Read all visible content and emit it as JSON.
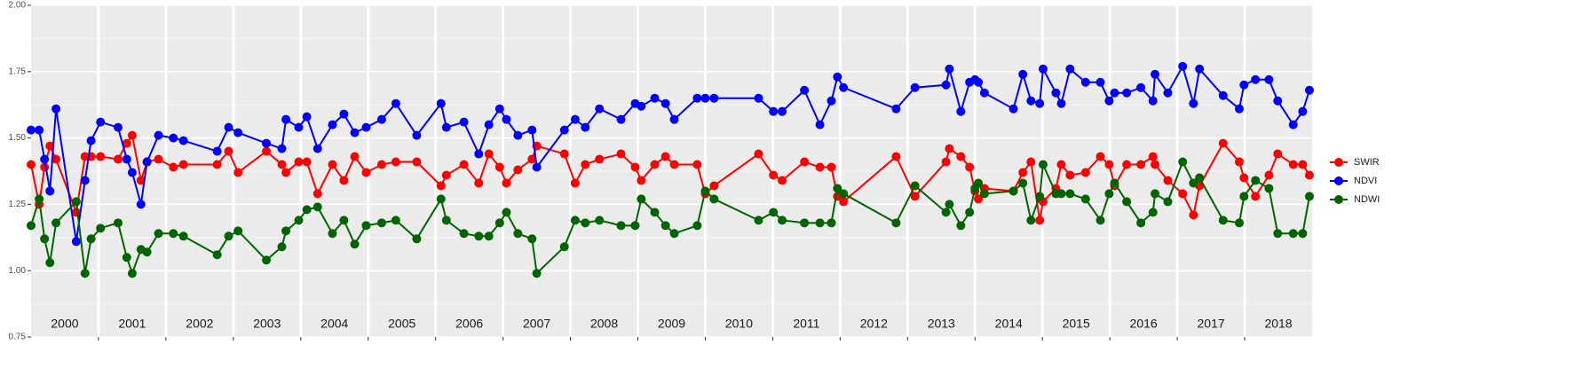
{
  "chart_data": {
    "type": "line",
    "xlim": [
      2000,
      2019
    ],
    "ylim": [
      0.75,
      2.0
    ],
    "yticks": [
      0.75,
      {
        "value": 1.0,
        "label": "1.00"
      },
      1.25,
      {
        "value": 1.5,
        "label": "1.50"
      },
      1.75,
      {
        "value": 2.0,
        "label": "2.00"
      }
    ],
    "xticks": [
      {
        "value": 2000.5,
        "label": "2000"
      },
      {
        "value": 2001.5,
        "label": "2001"
      },
      {
        "value": 2002.5,
        "label": "2002"
      },
      {
        "value": 2003.5,
        "label": "2003"
      },
      {
        "value": 2004.5,
        "label": "2004"
      },
      {
        "value": 2005.5,
        "label": "2005"
      },
      {
        "value": 2006.5,
        "label": "2006"
      },
      {
        "value": 2007.5,
        "label": "2007"
      },
      {
        "value": 2008.5,
        "label": "2008"
      },
      {
        "value": 2009.5,
        "label": "2009"
      },
      {
        "value": 2010.5,
        "label": "2010"
      },
      {
        "value": 2011.5,
        "label": "2011"
      },
      {
        "value": 2012.5,
        "label": "2012"
      },
      {
        "value": 2013.5,
        "label": "2013"
      },
      {
        "value": 2014.5,
        "label": "2014"
      },
      {
        "value": 2015.5,
        "label": "2015"
      },
      {
        "value": 2016.5,
        "label": "2016"
      },
      {
        "value": 2017.5,
        "label": "2017"
      },
      {
        "value": 2018.5,
        "label": "2018"
      }
    ],
    "grid": true,
    "legend": "right",
    "x": [
      2000.0,
      2000.12,
      2000.2,
      2000.28,
      2000.37,
      2000.67,
      2000.8,
      2000.89,
      2001.03,
      2001.29,
      2001.42,
      2001.5,
      2001.63,
      2001.72,
      2001.89,
      2002.11,
      2002.26,
      2002.76,
      2002.93,
      2003.07,
      2003.49,
      2003.72,
      2003.78,
      2003.97,
      2004.09,
      2004.25,
      2004.47,
      2004.64,
      2004.8,
      2004.97,
      2005.2,
      2005.41,
      2005.72,
      2006.08,
      2006.16,
      2006.42,
      2006.64,
      2006.79,
      2006.95,
      2007.05,
      2007.22,
      2007.43,
      2007.5,
      2007.91,
      2008.07,
      2008.22,
      2008.43,
      2008.75,
      2008.96,
      2009.05,
      2009.25,
      2009.41,
      2009.54,
      2009.88,
      2010.0,
      2010.13,
      2010.79,
      2011.01,
      2011.14,
      2011.47,
      2011.7,
      2011.87,
      2011.96,
      2012.05,
      2012.83,
      2013.11,
      2013.57,
      2013.62,
      2013.79,
      2013.92,
      2014.0,
      2014.05,
      2014.14,
      2014.57,
      2014.71,
      2014.83,
      2014.96,
      2015.01,
      2015.2,
      2015.28,
      2015.41,
      2015.64,
      2015.86,
      2015.99,
      2016.07,
      2016.25,
      2016.46,
      2016.64,
      2016.67,
      2016.86,
      2017.08,
      2017.24,
      2017.33,
      2017.68,
      2017.92,
      2017.99,
      2018.16,
      2018.36,
      2018.49,
      2018.72,
      2018.86,
      2018.96
    ],
    "series": [
      {
        "name": "SWIR",
        "color": "#ff0000",
        "values": [
          1.4,
          1.25,
          1.39,
          1.47,
          1.42,
          1.22,
          1.43,
          1.43,
          1.43,
          1.42,
          1.48,
          1.51,
          1.34,
          1.41,
          1.42,
          1.39,
          1.4,
          1.4,
          1.45,
          1.37,
          1.45,
          1.4,
          1.37,
          1.41,
          1.41,
          1.29,
          1.4,
          1.34,
          1.43,
          1.37,
          1.4,
          1.41,
          1.41,
          1.32,
          1.36,
          1.4,
          1.33,
          1.44,
          1.39,
          1.33,
          1.38,
          1.42,
          1.47,
          1.44,
          1.33,
          1.4,
          1.42,
          1.44,
          1.39,
          1.34,
          1.4,
          1.43,
          1.4,
          1.4,
          1.29,
          1.32,
          1.44,
          1.36,
          1.34,
          1.41,
          1.39,
          1.39,
          1.28,
          1.26,
          1.43,
          1.28,
          1.41,
          1.46,
          1.43,
          1.39,
          1.3,
          1.27,
          1.31,
          1.3,
          1.37,
          1.41,
          1.19,
          1.26,
          1.31,
          1.4,
          1.36,
          1.37,
          1.43,
          1.4,
          1.32,
          1.4,
          1.4,
          1.43,
          1.4,
          1.34,
          1.29,
          1.21,
          1.32,
          1.48,
          1.41,
          1.35,
          1.28,
          1.36,
          1.44,
          1.4,
          1.4,
          1.36
        ]
      },
      {
        "name": "NDVI",
        "color": "#0000ff",
        "values": [
          1.53,
          1.53,
          1.42,
          1.3,
          1.61,
          1.11,
          1.34,
          1.49,
          1.56,
          1.54,
          1.42,
          1.37,
          1.25,
          1.41,
          1.51,
          1.5,
          1.49,
          1.45,
          1.54,
          1.52,
          1.48,
          1.46,
          1.57,
          1.54,
          1.58,
          1.46,
          1.55,
          1.59,
          1.52,
          1.54,
          1.57,
          1.63,
          1.51,
          1.63,
          1.54,
          1.56,
          1.44,
          1.55,
          1.61,
          1.57,
          1.51,
          1.53,
          1.39,
          1.53,
          1.57,
          1.54,
          1.61,
          1.57,
          1.63,
          1.62,
          1.65,
          1.63,
          1.57,
          1.65,
          1.65,
          1.65,
          1.65,
          1.6,
          1.6,
          1.68,
          1.55,
          1.64,
          1.73,
          1.69,
          1.61,
          1.69,
          1.7,
          1.76,
          1.6,
          1.71,
          1.72,
          1.71,
          1.67,
          1.61,
          1.74,
          1.64,
          1.63,
          1.76,
          1.67,
          1.63,
          1.76,
          1.71,
          1.71,
          1.64,
          1.67,
          1.67,
          1.69,
          1.64,
          1.74,
          1.67,
          1.77,
          1.63,
          1.76,
          1.66,
          1.61,
          1.7,
          1.72,
          1.72,
          1.64,
          1.55,
          1.6,
          1.68
        ]
      },
      {
        "name": "NDWI",
        "color": "#006400",
        "values": [
          1.17,
          1.27,
          1.12,
          1.03,
          1.18,
          1.26,
          0.99,
          1.12,
          1.16,
          1.18,
          1.05,
          0.99,
          1.08,
          1.07,
          1.14,
          1.14,
          1.13,
          1.06,
          1.13,
          1.15,
          1.04,
          1.09,
          1.15,
          1.19,
          1.23,
          1.24,
          1.14,
          1.19,
          1.1,
          1.17,
          1.18,
          1.19,
          1.12,
          1.27,
          1.19,
          1.14,
          1.13,
          1.13,
          1.18,
          1.22,
          1.14,
          1.12,
          0.99,
          1.09,
          1.19,
          1.18,
          1.19,
          1.17,
          1.17,
          1.27,
          1.22,
          1.17,
          1.14,
          1.17,
          1.3,
          1.27,
          1.19,
          1.22,
          1.19,
          1.18,
          1.18,
          1.18,
          1.31,
          1.29,
          1.18,
          1.32,
          1.22,
          1.25,
          1.17,
          1.22,
          1.31,
          1.33,
          1.29,
          1.3,
          1.33,
          1.19,
          1.28,
          1.4,
          1.29,
          1.29,
          1.29,
          1.27,
          1.19,
          1.29,
          1.33,
          1.26,
          1.18,
          1.22,
          1.29,
          1.26,
          1.41,
          1.33,
          1.35,
          1.19,
          1.18,
          1.28,
          1.34,
          1.31,
          1.14,
          1.14,
          1.14,
          1.28
        ]
      }
    ]
  }
}
